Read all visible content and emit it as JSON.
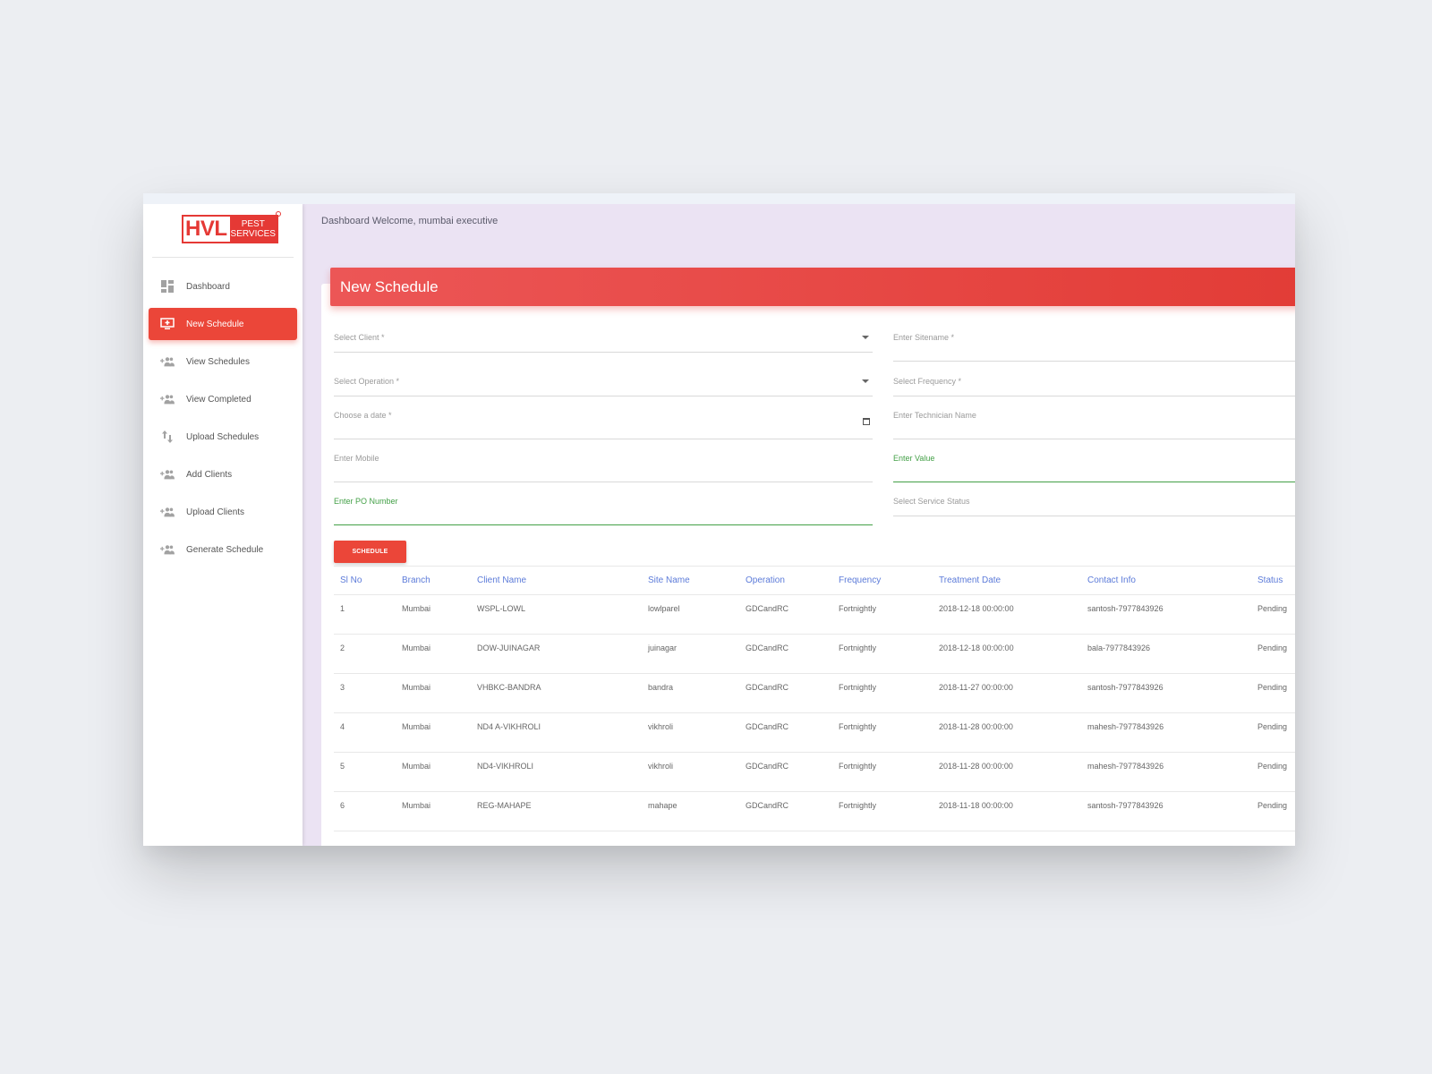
{
  "brand": {
    "logo_main": "HVL",
    "logo_line1": "PEST",
    "logo_line2": "SERVICES"
  },
  "sidebar": {
    "items": [
      {
        "label": "Dashboard",
        "icon": "dashboard-icon",
        "active": false
      },
      {
        "label": "New Schedule",
        "icon": "add-to-queue-icon",
        "active": true
      },
      {
        "label": "View Schedules",
        "icon": "group-add-icon",
        "active": false
      },
      {
        "label": "View Completed",
        "icon": "group-add-icon",
        "active": false
      },
      {
        "label": "Upload Schedules",
        "icon": "swap-vert-icon",
        "active": false
      },
      {
        "label": "Add Clients",
        "icon": "group-add-icon",
        "active": false
      },
      {
        "label": "Upload Clients",
        "icon": "group-add-icon",
        "active": false
      },
      {
        "label": "Generate Schedule",
        "icon": "group-add-icon",
        "active": false
      }
    ]
  },
  "header": {
    "text": "Dashboard Welcome, mumbai executive"
  },
  "form": {
    "title": "New Schedule",
    "select_client": "Select Client *",
    "enter_sitename": "Enter Sitename *",
    "select_operation": "Select Operation *",
    "select_frequency": "Select Frequency *",
    "choose_date": "Choose a date *",
    "technician_name": "Enter Technician Name",
    "mobile": "Enter Mobile",
    "value": "Enter Value",
    "po_number": "Enter PO Number",
    "service_status": "Select Service Status",
    "submit_label": "SCHEDULE"
  },
  "table": {
    "headers": [
      "Sl No",
      "Branch",
      "Client Name",
      "Site Name",
      "Operation",
      "Frequency",
      "Treatment Date",
      "Contact Info",
      "Status"
    ],
    "rows": [
      [
        "1",
        "Mumbai",
        "WSPL-LOWL",
        "lowlparel",
        "GDCandRC",
        "Fortnightly",
        "2018-12-18 00:00:00",
        "santosh-7977843926",
        "Pending"
      ],
      [
        "2",
        "Mumbai",
        "DOW-JUINAGAR",
        "juinagar",
        "GDCandRC",
        "Fortnightly",
        "2018-12-18 00:00:00",
        "bala-7977843926",
        "Pending"
      ],
      [
        "3",
        "Mumbai",
        "VHBKC-BANDRA",
        "bandra",
        "GDCandRC",
        "Fortnightly",
        "2018-11-27 00:00:00",
        "santosh-7977843926",
        "Pending"
      ],
      [
        "4",
        "Mumbai",
        "ND4 A-VIKHROLI",
        "vikhroli",
        "GDCandRC",
        "Fortnightly",
        "2018-11-28 00:00:00",
        "mahesh-7977843926",
        "Pending"
      ],
      [
        "5",
        "Mumbai",
        "ND4-VIKHROLI",
        "vikhroli",
        "GDCandRC",
        "Fortnightly",
        "2018-11-28 00:00:00",
        "mahesh-7977843926",
        "Pending"
      ],
      [
        "6",
        "Mumbai",
        "REG-MAHAPE",
        "mahape",
        "GDCandRC",
        "Fortnightly",
        "2018-11-18 00:00:00",
        "santosh-7977843926",
        "Pending"
      ]
    ]
  },
  "colors": {
    "accent": "#eb4639",
    "header_link": "#5c7bd9",
    "focus_green": "#43a047",
    "content_bg": "#ebe3f3"
  }
}
